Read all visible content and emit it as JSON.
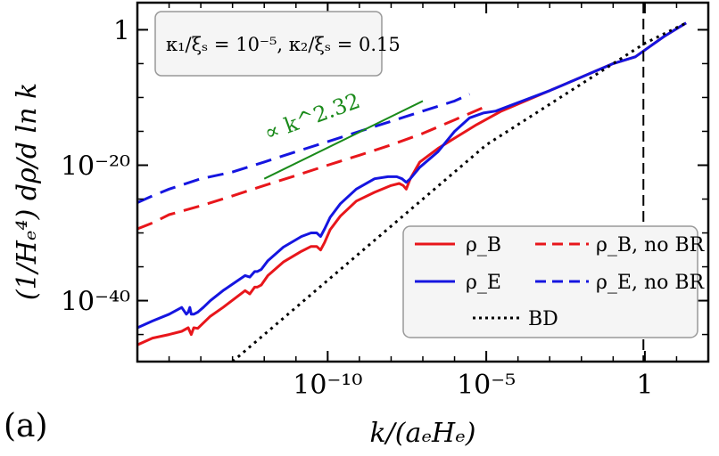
{
  "panel_label": "(a)",
  "parameters_box": "κ₁/ξₛ = 10⁻⁵, κ₂/ξₛ = 0.15",
  "slope_annotation": "∝ k^2.32",
  "colors": {
    "rho_B": "#e8161b",
    "rho_E": "#1515e0",
    "BD": "#000000",
    "slope": "#1a8a1a"
  },
  "chart_data": {
    "type": "line",
    "xlabel": "k/(aₑHₑ)",
    "ylabel": "(1/Hₑ⁴) dρ/d ln k",
    "x_scale": "log",
    "y_scale": "log",
    "xlim": [
      1e-16,
      100
    ],
    "ylim": [
      1e-49,
      10000.0
    ],
    "x_ticks": [
      1e-10,
      1e-05,
      1
    ],
    "x_tick_labels": [
      "10⁻¹⁰",
      "10⁻⁵",
      "1"
    ],
    "y_ticks": [
      1e-40,
      1e-20,
      1
    ],
    "y_tick_labels": [
      "10⁻⁴⁰",
      "10⁻²⁰",
      "1"
    ],
    "grid": false,
    "legend_position": "lower-right",
    "vertical_line_x": 0.9,
    "series": [
      {
        "name": "ρ_B",
        "style": "solid",
        "color": "#e8161b",
        "x": [
          1e-16,
          3e-16,
          1e-15,
          2.5e-15,
          4e-15,
          5e-15,
          6e-15,
          8e-15,
          1.2e-14,
          2e-14,
          5e-14,
          1.5e-13,
          2.5e-13,
          3.5e-13,
          5e-13,
          6e-13,
          8e-13,
          1.3e-12,
          4e-12,
          1.5e-11,
          3e-11,
          4.5e-11,
          6e-11,
          8e-11,
          1.2e-10,
          2.5e-10,
          8e-10,
          3e-09,
          1e-08,
          1.8e-08,
          2.4e-08,
          3e-08,
          4e-08,
          8e-08,
          3e-07,
          1e-06,
          5e-06,
          3e-05,
          0.001,
          0.1,
          0.5,
          1,
          4,
          20
        ],
        "y": [
          3e-47,
          3e-46,
          1e-45,
          3e-45,
          1e-44,
          1e-45,
          1e-44,
          8e-45,
          5e-44,
          5e-43,
          1e-41,
          5e-40,
          3e-39,
          1e-39,
          1e-38,
          1e-38,
          2e-38,
          5e-37,
          5e-35,
          2e-33,
          1e-32,
          1e-32,
          3e-33,
          4e-32,
          3e-30,
          3e-28,
          5e-26,
          1e-24,
          1e-23,
          2e-23,
          1e-23,
          3e-24,
          1e-22,
          3e-20,
          3e-18,
          1e-16,
          1e-14,
          1e-12,
          1e-09,
          1e-05,
          0.0001,
          0.001,
          0.1,
          10
        ]
      },
      {
        "name": "ρ_E",
        "style": "solid",
        "color": "#1515e0",
        "x": [
          1e-16,
          3e-16,
          1e-15,
          2.5e-15,
          3.5e-15,
          4e-15,
          4.5e-15,
          5e-15,
          6e-15,
          8e-15,
          1.2e-14,
          2e-14,
          5e-14,
          1.5e-13,
          2.5e-13,
          3.5e-13,
          5e-13,
          6e-13,
          8e-13,
          1.3e-12,
          4e-12,
          1.5e-11,
          3e-11,
          4.5e-11,
          6e-11,
          8e-11,
          1.2e-10,
          2.5e-10,
          8e-10,
          3e-09,
          8e-09,
          1.5e-08,
          2.2e-08,
          3e-08,
          4e-08,
          8e-08,
          3e-07,
          1e-06,
          3e-06,
          8e-06,
          2e-05,
          0.001,
          0.1,
          0.5,
          1,
          4,
          20
        ],
        "y": [
          1e-44,
          1e-43,
          1e-42,
          1e-41,
          1e-42,
          2e-42,
          1e-41,
          1e-42,
          1e-42,
          2e-42,
          1e-41,
          1e-40,
          3e-39,
          1e-37,
          5e-37,
          3e-37,
          2e-36,
          2e-36,
          4e-36,
          8e-35,
          8e-33,
          3e-31,
          1e-30,
          1e-30,
          3e-31,
          4e-30,
          2e-28,
          2e-26,
          3e-24,
          1e-22,
          2e-22,
          2e-22,
          1e-22,
          3e-23,
          1e-22,
          5e-21,
          1e-18,
          1e-15,
          1e-13,
          5e-13,
          1e-12,
          1e-09,
          1e-05,
          0.0001,
          0.001,
          0.1,
          10
        ]
      },
      {
        "name": "ρ_B, no BR",
        "style": "dashed",
        "color": "#e8161b",
        "x": [
          1e-16,
          3e-16,
          1e-15,
          1e-14,
          1e-13,
          1e-12,
          1e-11,
          1e-10,
          1e-09,
          1e-08,
          1e-07,
          1e-06,
          1e-05
        ],
        "y": [
          4e-30,
          3e-29,
          5e-28,
          1e-26,
          3e-25,
          1e-23,
          3e-22,
          1e-20,
          3e-19,
          1e-17,
          5e-16,
          5e-14,
          5e-12
        ]
      },
      {
        "name": "ρ_E, no BR",
        "style": "dashed",
        "color": "#1515e0",
        "x": [
          1e-16,
          3e-16,
          1e-15,
          1e-14,
          1e-13,
          1e-12,
          1e-11,
          1e-10,
          1e-09,
          1e-08,
          1e-07,
          1e-06,
          3e-06
        ],
        "y": [
          3e-26,
          3e-25,
          3e-24,
          1e-22,
          1e-21,
          3e-20,
          1e-18,
          3e-17,
          1e-15,
          3e-14,
          1e-12,
          3e-11,
          3e-10
        ]
      },
      {
        "name": "BD",
        "style": "dotted",
        "color": "#000000",
        "x": [
          1e-13,
          1e-10,
          1e-05,
          1,
          20
        ],
        "y": [
          1e-49,
          1e-37,
          1e-17,
          0.01,
          10
        ]
      }
    ],
    "slope_line": {
      "x": [
        1e-12,
        1e-07
      ],
      "y": [
        1e-22,
        3e-11
      ],
      "color": "#1a8a1a"
    }
  }
}
